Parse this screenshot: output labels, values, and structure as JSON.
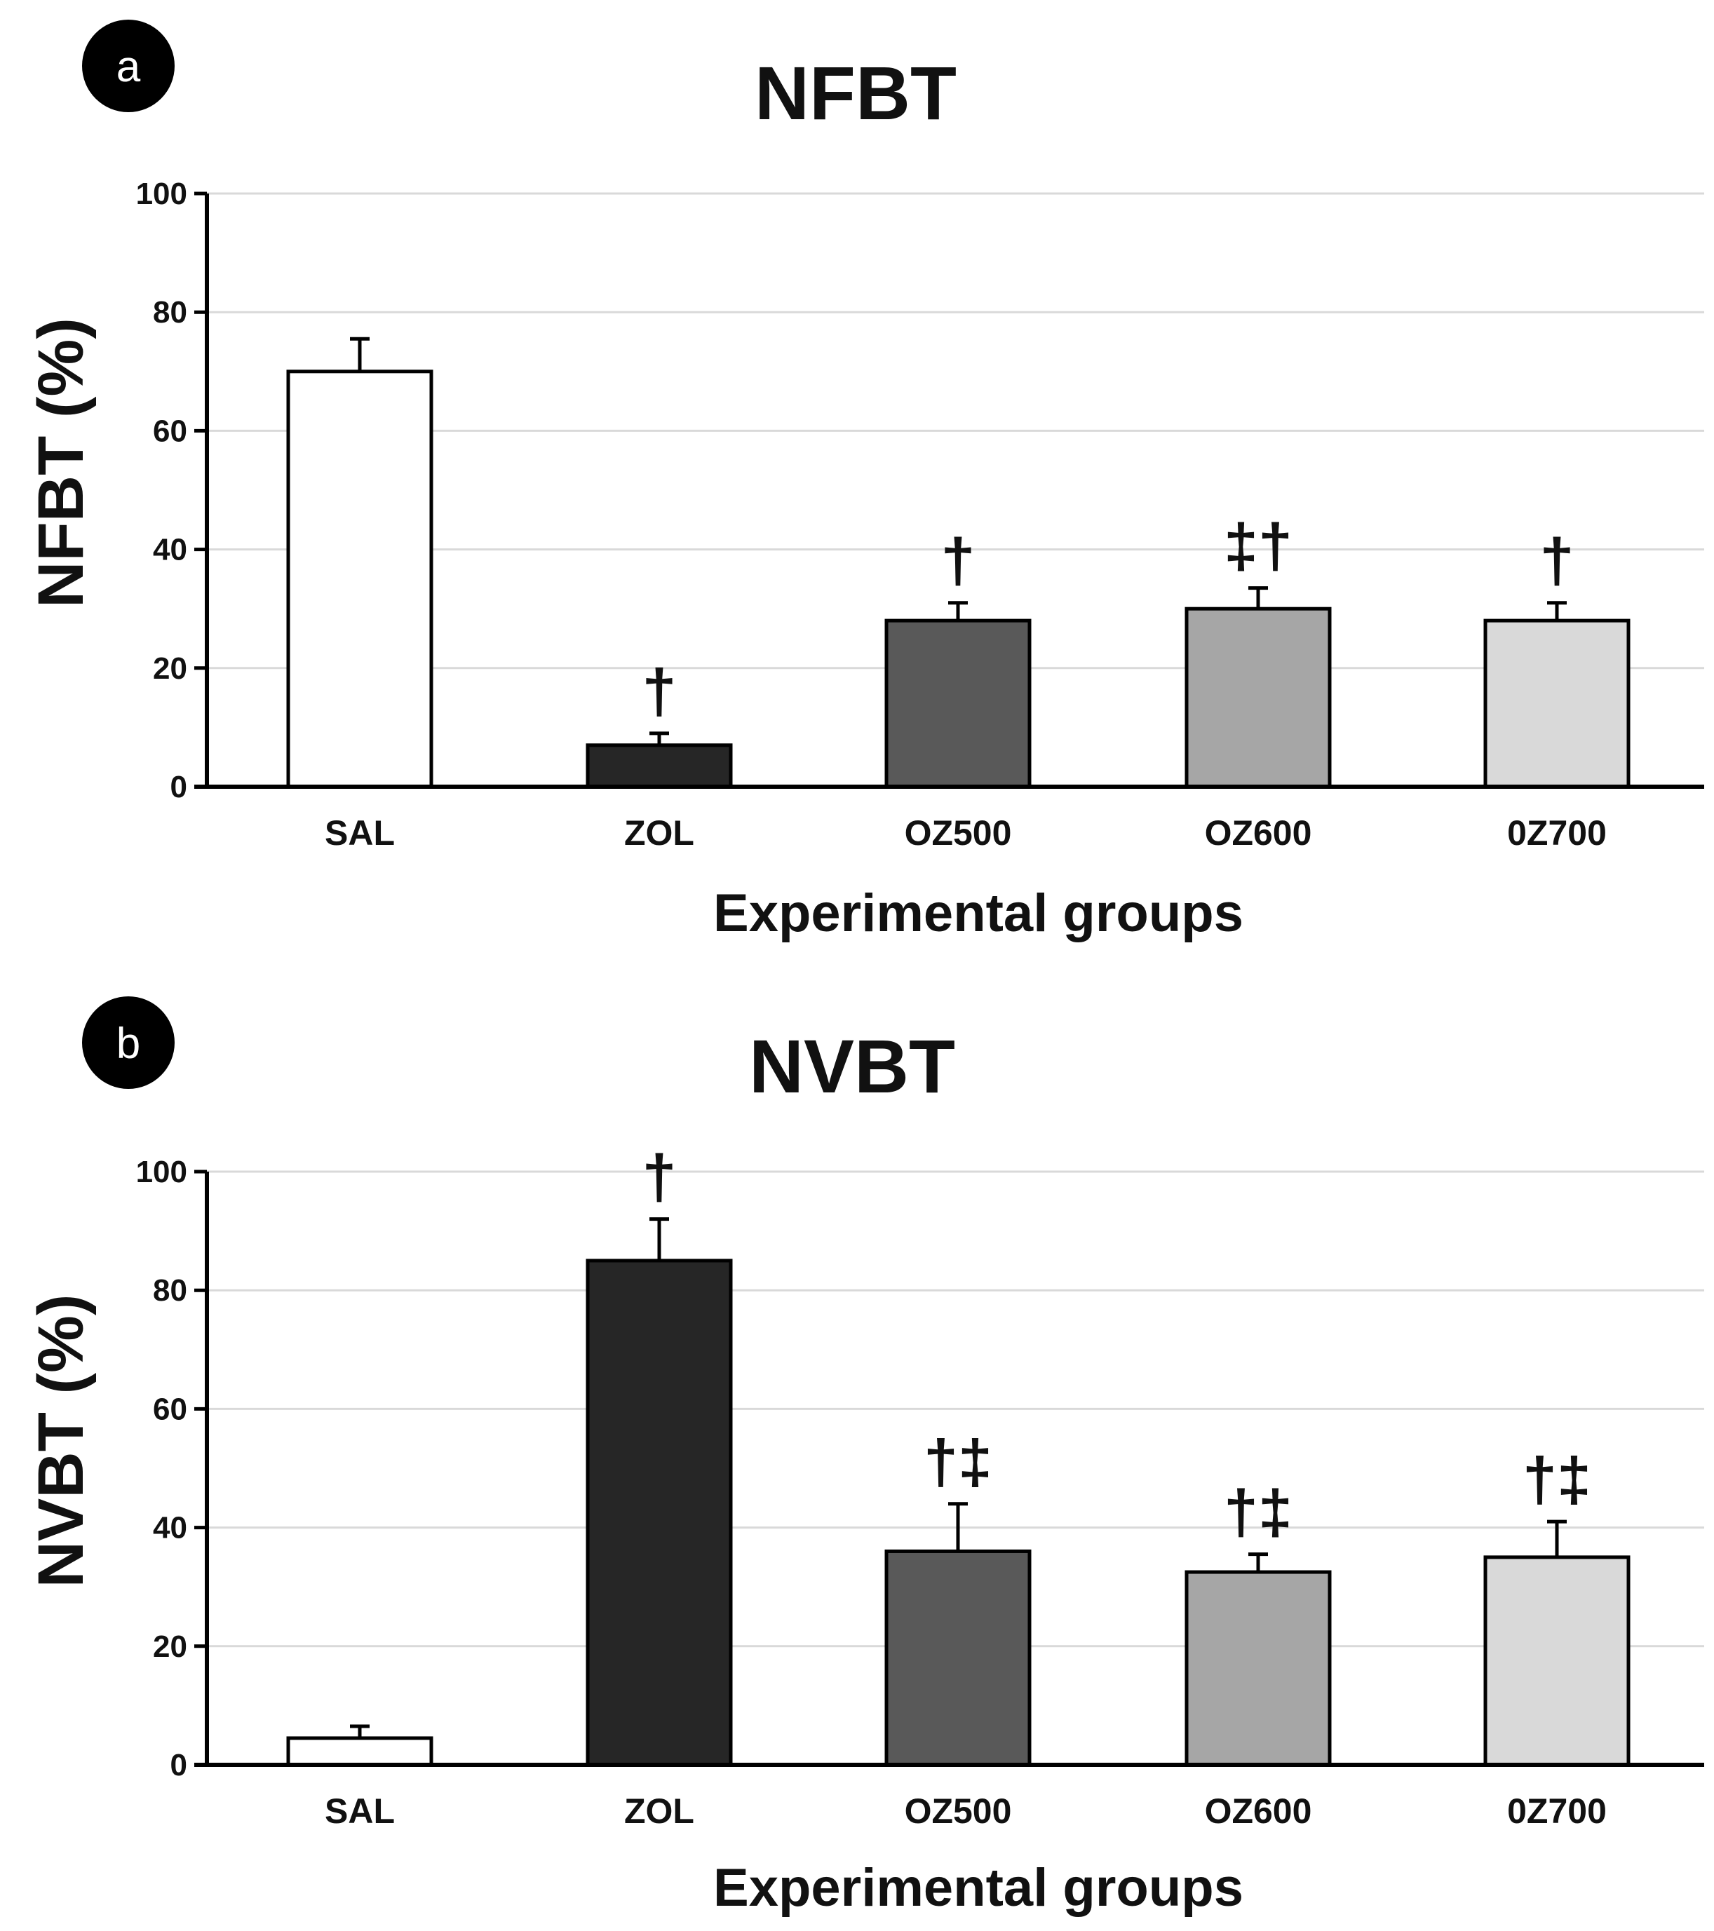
{
  "chart_data": [
    {
      "panel": "a",
      "type": "bar",
      "title": "NFBT",
      "xlabel": "Experimental groups",
      "ylabel": "NFBT (%)",
      "ylim": [
        0,
        100
      ],
      "yticks": [
        "0",
        "20",
        "40",
        "60",
        "80",
        "100"
      ],
      "categories": [
        "SAL",
        "ZOL",
        "OZ500",
        "OZ600",
        "0Z700"
      ],
      "values": [
        70,
        7,
        28,
        30,
        28
      ],
      "errors": [
        5.5,
        2,
        3,
        3.5,
        3
      ],
      "annotations": [
        "",
        "†",
        "†",
        "‡†",
        "†"
      ],
      "bar_colors": [
        "#ffffff",
        "#262626",
        "#595959",
        "#a6a6a6",
        "#d9d9d9"
      ],
      "grid": true
    },
    {
      "panel": "b",
      "type": "bar",
      "title": "NVBT",
      "xlabel": "Experimental groups",
      "ylabel": "NVBT (%)",
      "ylim": [
        0,
        100
      ],
      "yticks": [
        "0",
        "20",
        "40",
        "60",
        "80",
        "100"
      ],
      "categories": [
        "SAL",
        "ZOL",
        "OZ500",
        "OZ600",
        "0Z700"
      ],
      "values": [
        4.5,
        85,
        36,
        32.5,
        35
      ],
      "errors": [
        2,
        7,
        8,
        3,
        6
      ],
      "annotations": [
        "",
        "†",
        "†‡",
        "†‡",
        "†‡"
      ],
      "bar_colors": [
        "#ffffff",
        "#262626",
        "#595959",
        "#a6a6a6",
        "#d9d9d9"
      ],
      "grid": true
    }
  ]
}
